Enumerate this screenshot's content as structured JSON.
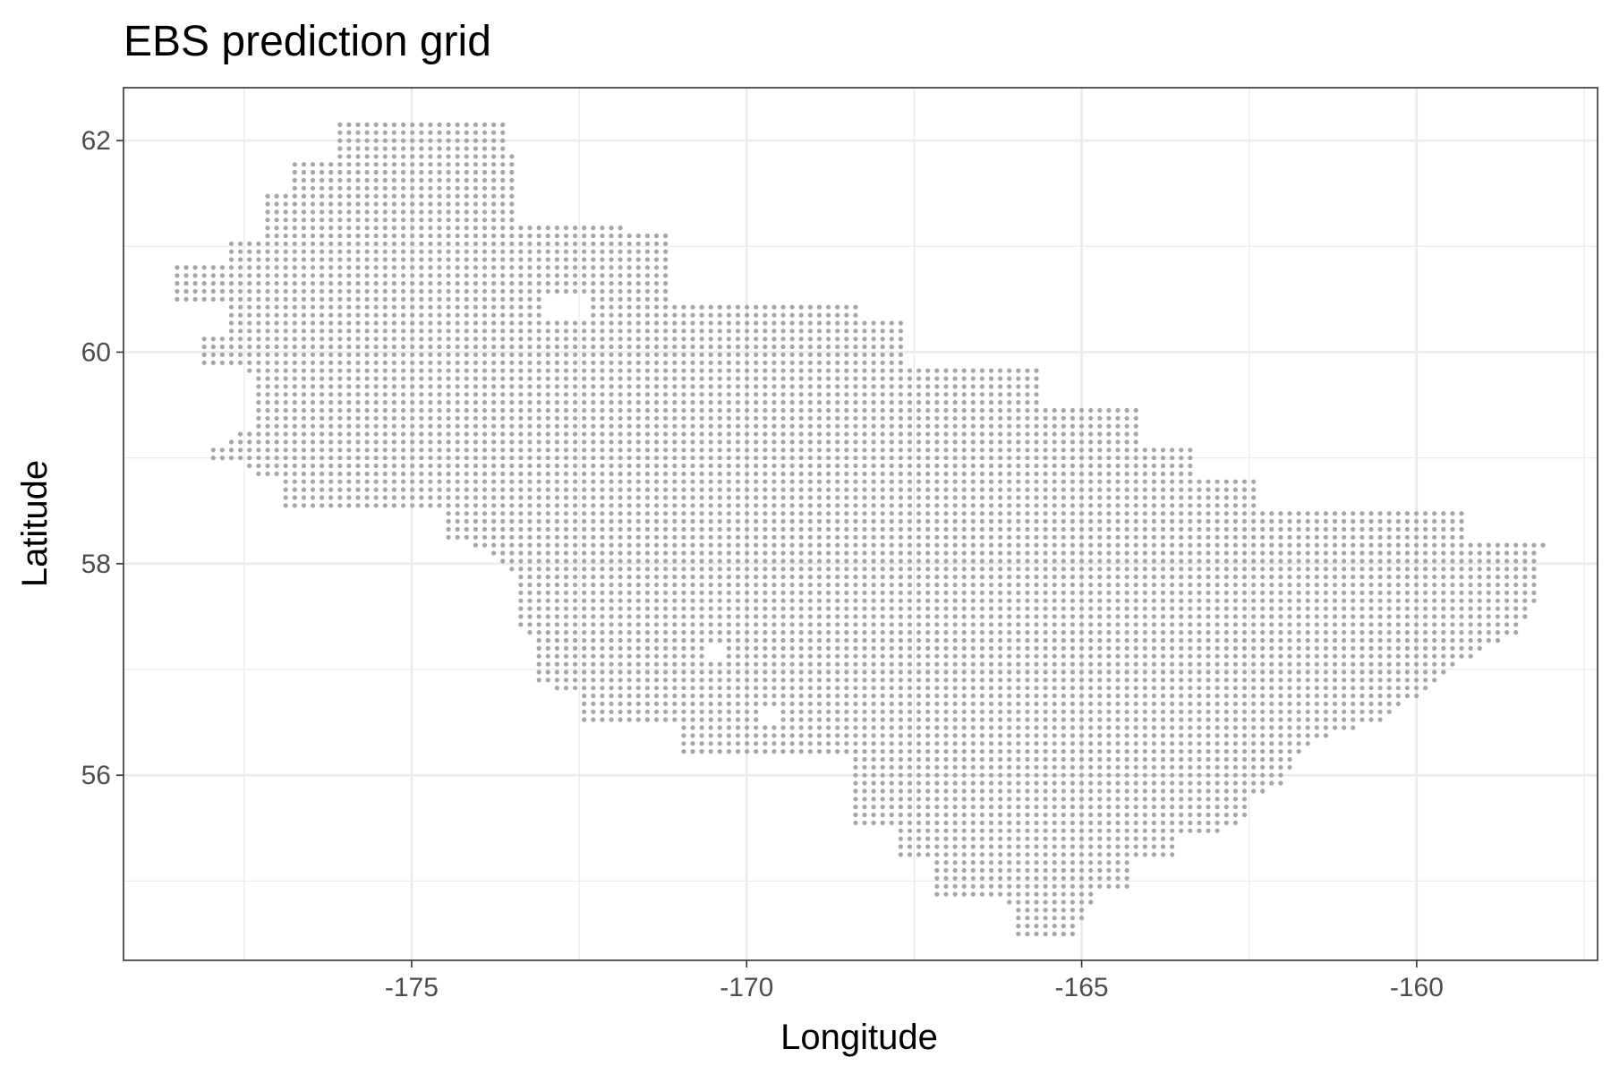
{
  "chart_data": {
    "type": "scatter",
    "title": "EBS prediction grid",
    "xlabel": "Longitude",
    "ylabel": "Latitude",
    "xlim": [
      -179.3,
      -157.3
    ],
    "ylim": [
      54.25,
      62.5
    ],
    "x_ticks": [
      -175,
      -170,
      -165,
      -160
    ],
    "x_tick_labels": [
      "-175",
      "-170",
      "-165",
      "-160"
    ],
    "y_ticks": [
      56,
      58,
      60,
      62
    ],
    "y_tick_labels": [
      "56",
      "58",
      "60",
      "62"
    ],
    "grid": true,
    "grid_minor": true,
    "point_color": "#a6a6a6",
    "grid_spacing": {
      "lon": 0.135,
      "lat": 0.075
    },
    "region_polygon": [
      [
        -178.5,
        60.85
      ],
      [
        -177.8,
        60.85
      ],
      [
        -177.8,
        61.1
      ],
      [
        -177.2,
        61.1
      ],
      [
        -177.2,
        61.5
      ],
      [
        -176.8,
        61.5
      ],
      [
        -176.8,
        61.85
      ],
      [
        -176.2,
        61.85
      ],
      [
        -176.2,
        62.2
      ],
      [
        -174.2,
        62.2
      ],
      [
        -173.6,
        62.15
      ],
      [
        -173.6,
        61.9
      ],
      [
        -173.4,
        61.9
      ],
      [
        -173.4,
        61.25
      ],
      [
        -171.2,
        61.15
      ],
      [
        -171.2,
        60.5
      ],
      [
        -169.1,
        60.5
      ],
      [
        -168.3,
        60.5
      ],
      [
        -168.3,
        60.35
      ],
      [
        -167.7,
        60.35
      ],
      [
        -167.7,
        59.85
      ],
      [
        -166.7,
        59.85
      ],
      [
        -165.6,
        59.85
      ],
      [
        -165.6,
        59.5
      ],
      [
        -164.1,
        59.5
      ],
      [
        -164.1,
        59.15
      ],
      [
        -163.3,
        59.15
      ],
      [
        -163.3,
        58.85
      ],
      [
        -162.4,
        58.85
      ],
      [
        -162.4,
        58.55
      ],
      [
        -161.0,
        58.55
      ],
      [
        -159.2,
        58.5
      ],
      [
        -159.2,
        58.25
      ],
      [
        -158.1,
        58.2
      ],
      [
        -158.2,
        57.7
      ],
      [
        -158.5,
        57.35
      ],
      [
        -159.0,
        57.2
      ],
      [
        -159.6,
        56.95
      ],
      [
        -160.4,
        56.55
      ],
      [
        -161.2,
        56.4
      ],
      [
        -161.8,
        56.2
      ],
      [
        -162.0,
        55.9
      ],
      [
        -162.5,
        55.8
      ],
      [
        -162.6,
        55.5
      ],
      [
        -163.6,
        55.4
      ],
      [
        -163.6,
        55.2
      ],
      [
        -164.2,
        55.2
      ],
      [
        -164.2,
        54.95
      ],
      [
        -164.8,
        54.9
      ],
      [
        -164.9,
        54.7
      ],
      [
        -165.1,
        54.5
      ],
      [
        -166.0,
        54.5
      ],
      [
        -166.1,
        54.85
      ],
      [
        -167.2,
        54.85
      ],
      [
        -167.2,
        55.2
      ],
      [
        -167.8,
        55.2
      ],
      [
        -167.8,
        55.55
      ],
      [
        -168.5,
        55.55
      ],
      [
        -168.5,
        56.2
      ],
      [
        -171.0,
        56.2
      ],
      [
        -171.0,
        56.5
      ],
      [
        -172.5,
        56.5
      ],
      [
        -172.5,
        56.8
      ],
      [
        -173.2,
        56.85
      ],
      [
        -173.2,
        57.3
      ],
      [
        -173.5,
        57.4
      ],
      [
        -173.5,
        57.9
      ],
      [
        -173.8,
        58.1
      ],
      [
        -174.2,
        58.2
      ],
      [
        -174.5,
        58.2
      ],
      [
        -174.5,
        58.55
      ],
      [
        -175.5,
        58.55
      ],
      [
        -176.5,
        58.5
      ],
      [
        -177.0,
        58.55
      ],
      [
        -177.0,
        58.85
      ],
      [
        -177.4,
        58.85
      ],
      [
        -177.5,
        59.0
      ],
      [
        -178.0,
        59.0
      ],
      [
        -178.0,
        59.15
      ],
      [
        -177.8,
        59.15
      ],
      [
        -177.4,
        59.3
      ],
      [
        -177.3,
        59.8
      ],
      [
        -177.6,
        59.85
      ],
      [
        -178.0,
        59.85
      ],
      [
        -178.2,
        59.85
      ],
      [
        -178.2,
        60.15
      ],
      [
        -177.8,
        60.15
      ],
      [
        -177.8,
        60.5
      ],
      [
        -178.5,
        60.5
      ]
    ],
    "holes": [
      [
        [
          -173.1,
          60.55
        ],
        [
          -172.3,
          60.55
        ],
        [
          -172.3,
          60.35
        ],
        [
          -173.1,
          60.35
        ]
      ],
      [
        [
          -170.6,
          57.22
        ],
        [
          -170.3,
          57.22
        ],
        [
          -170.3,
          57.12
        ],
        [
          -170.6,
          57.12
        ]
      ],
      [
        [
          -169.8,
          56.62
        ],
        [
          -169.55,
          56.62
        ],
        [
          -169.55,
          56.52
        ],
        [
          -169.8,
          56.52
        ]
      ]
    ]
  }
}
